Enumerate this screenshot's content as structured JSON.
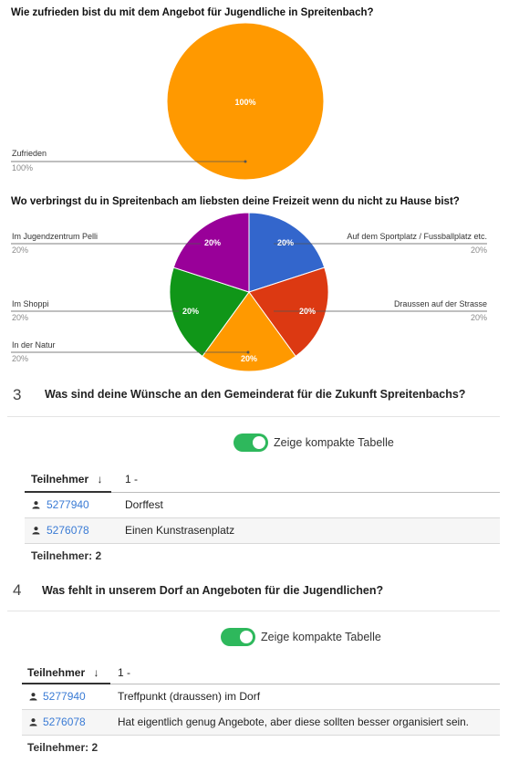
{
  "chart_data": [
    {
      "type": "pie",
      "title": "Wie zufrieden bist du mit dem Angebot für Jugendliche in Spreitenbach?",
      "slices": [
        {
          "label": "Zufrieden",
          "value": 100,
          "pct_label": "100%",
          "slice_label": "100%",
          "color": "#ff9900"
        }
      ]
    },
    {
      "type": "pie",
      "title": "Wo verbringst du in Spreitenbach am liebsten deine Freizeit wenn du nicht zu Hause bist?",
      "slices": [
        {
          "label": "Auf dem Sportplatz / Fussballplatz etc.",
          "value": 20,
          "pct_label": "20%",
          "slice_label": "20%",
          "color": "#3366cc"
        },
        {
          "label": "Draussen auf der Strasse",
          "value": 20,
          "pct_label": "20%",
          "slice_label": "20%",
          "color": "#dc3912"
        },
        {
          "label": "In der Natur",
          "value": 20,
          "pct_label": "20%",
          "slice_label": "20%",
          "color": "#ff9900"
        },
        {
          "label": "Im Shoppi",
          "value": 20,
          "pct_label": "20%",
          "slice_label": "20%",
          "color": "#109618"
        },
        {
          "label": "Im Jugendzentrum Pelli",
          "value": 20,
          "pct_label": "20%",
          "slice_label": "20%",
          "color": "#990099"
        }
      ]
    }
  ],
  "questions": [
    {
      "number": "3",
      "title": "Was sind deine Wünsche an den Gemeinderat für die Zukunft Spreitenbachs?",
      "toggle_label": "Zeige kompakte Tabelle",
      "header_participants": "Teilnehmer",
      "header_sort_icon": "↓",
      "header_col": "1 -",
      "rows": [
        {
          "id": "5277940",
          "value": "Dorffest"
        },
        {
          "id": "5276078",
          "value": "Einen Kunstrasenplatz"
        }
      ],
      "footer": "Teilnehmer: 2"
    },
    {
      "number": "4",
      "title": "Was fehlt in unserem Dorf an Angeboten für die Jugendlichen?",
      "toggle_label": "Zeige kompakte Tabelle",
      "header_participants": "Teilnehmer",
      "header_sort_icon": "↓",
      "header_col": "1 -",
      "rows": [
        {
          "id": "5277940",
          "value": "Treffpunkt (draussen) im Dorf"
        },
        {
          "id": "5276078",
          "value": "Hat eigentlich genug Angebote, aber diese sollten besser organisiert sein."
        }
      ],
      "footer": "Teilnehmer: 2"
    }
  ],
  "colors": {
    "toggle_on": "#2eb85c",
    "link": "#3a7bd5"
  }
}
